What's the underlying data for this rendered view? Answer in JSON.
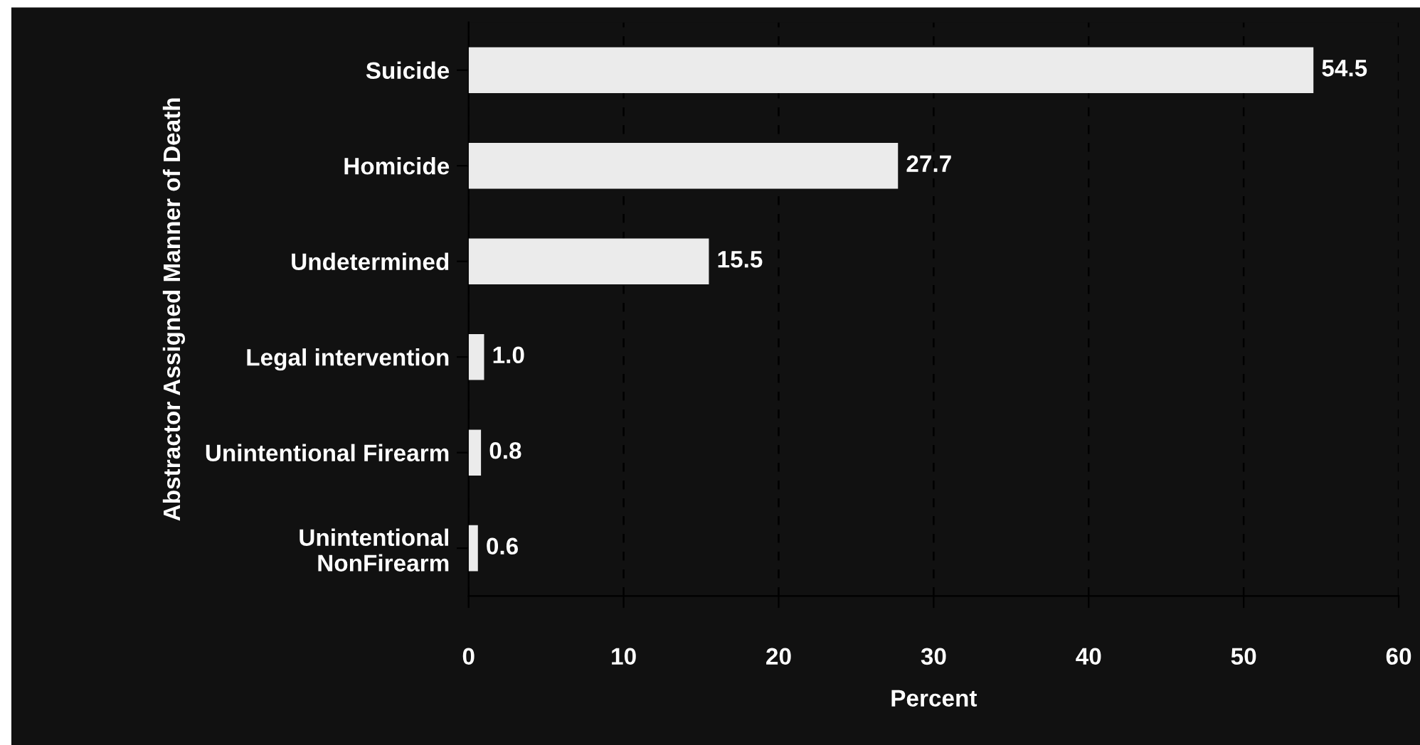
{
  "chart_data": {
    "type": "bar",
    "orientation": "horizontal",
    "xlabel": "Percent",
    "ylabel": "Abstractor Assigned Manner of Death",
    "categories": [
      "Suicide",
      "Homicide",
      "Undetermined",
      "Legal intervention",
      "Unintentional Firearm",
      "Unintentional\nNonFirearm"
    ],
    "values": [
      54.5,
      27.7,
      15.5,
      1.0,
      0.8,
      0.6
    ],
    "value_labels": [
      "54.5",
      "27.7",
      "15.5",
      "1.0",
      "0.8",
      "0.6"
    ],
    "color": "#ebebeb",
    "xlim": [
      0,
      60
    ],
    "xticks": [
      0,
      10,
      20,
      30,
      40,
      50,
      60
    ],
    "grid": "x"
  }
}
